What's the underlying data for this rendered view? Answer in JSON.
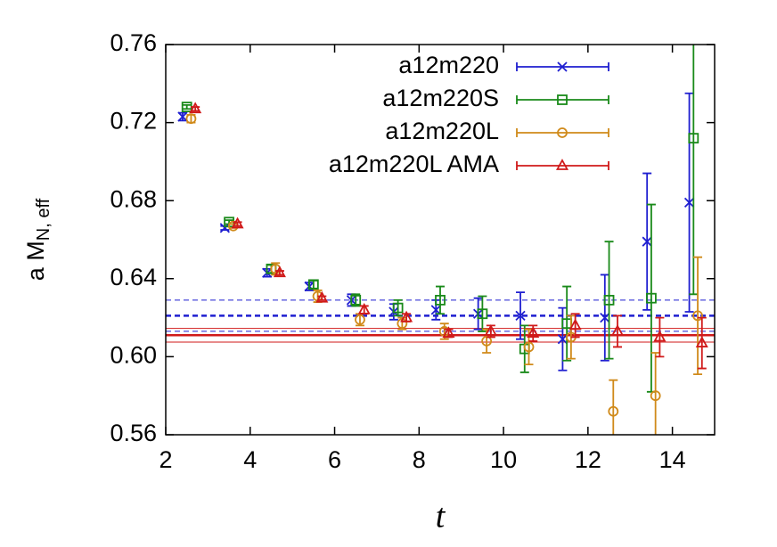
{
  "chart_data": {
    "type": "errorbar",
    "xlabel": "t",
    "ylabel": "a M",
    "ylabel_sub": "N, eff",
    "xlim": [
      2,
      15
    ],
    "xticks": [
      2,
      4,
      6,
      8,
      10,
      12,
      14
    ],
    "ylim": [
      0.56,
      0.76
    ],
    "yticks": [
      0.56,
      {
        "value": 0.6,
        "label": "0.60"
      },
      0.64,
      0.68,
      0.72,
      0.76
    ],
    "series": [
      {
        "name": "a12m220",
        "color": "#1f1fd0",
        "marker": "x",
        "x": [
          2.4,
          3.4,
          4.4,
          5.4,
          6.4,
          7.4,
          8.4,
          9.4,
          10.4,
          11.4,
          12.4,
          13.4,
          14.4
        ],
        "values": [
          0.723,
          0.666,
          0.643,
          0.636,
          0.629,
          0.623,
          0.624,
          0.622,
          0.621,
          0.609,
          0.62,
          0.659,
          0.679
        ],
        "errors": [
          0.002,
          0.001,
          0.002,
          0.002,
          0.003,
          0.004,
          0.005,
          0.008,
          0.012,
          0.016,
          0.022,
          0.035,
          0.056
        ]
      },
      {
        "name": "a12m220S",
        "color": "#1a8a1a",
        "marker": "square",
        "x": [
          2.5,
          3.5,
          4.5,
          5.5,
          6.5,
          7.5,
          8.5,
          9.5,
          10.5,
          11.5,
          12.5,
          13.5,
          14.5
        ],
        "values": [
          0.728,
          0.669,
          0.645,
          0.637,
          0.629,
          0.625,
          0.629,
          0.622,
          0.604,
          0.617,
          0.629,
          0.63,
          0.712
        ],
        "errors": [
          0.001,
          0.001,
          0.002,
          0.002,
          0.003,
          0.004,
          0.007,
          0.009,
          0.012,
          0.019,
          0.03,
          0.048,
          0.08
        ]
      },
      {
        "name": "a12m220L",
        "color": "#d08a1a",
        "marker": "circle",
        "x": [
          2.6,
          3.6,
          4.6,
          5.6,
          6.6,
          7.6,
          8.6,
          9.6,
          10.6,
          11.6,
          12.6,
          13.6,
          14.6
        ],
        "values": [
          0.722,
          0.667,
          0.645,
          0.631,
          0.619,
          0.617,
          0.613,
          0.608,
          0.605,
          0.61,
          0.572,
          0.58,
          0.621
        ],
        "errors": [
          0.002,
          0.001,
          0.003,
          0.003,
          0.003,
          0.003,
          0.004,
          0.006,
          0.009,
          0.011,
          0.016,
          0.022,
          0.03
        ]
      },
      {
        "name": "a12m220L AMA",
        "color": "#d01a1a",
        "marker": "triangle",
        "x": [
          2.7,
          3.7,
          4.7,
          5.7,
          6.7,
          7.7,
          8.7,
          9.7,
          10.7,
          11.7,
          12.7,
          13.7,
          14.7
        ],
        "values": [
          0.727,
          0.668,
          0.643,
          0.63,
          0.624,
          0.62,
          0.612,
          0.613,
          0.612,
          0.616,
          0.613,
          0.61,
          0.607
        ],
        "errors": [
          0.001,
          0.001,
          0.001,
          0.001,
          0.002,
          0.002,
          0.002,
          0.003,
          0.004,
          0.006,
          0.008,
          0.01,
          0.013
        ]
      }
    ],
    "fits": [
      {
        "color": "#1f1fd0",
        "dashed": true,
        "value": 0.621,
        "error": 0.008
      },
      {
        "color": "#d01a1a",
        "dashed": false,
        "value": 0.611,
        "error": 0.0035
      }
    ]
  }
}
